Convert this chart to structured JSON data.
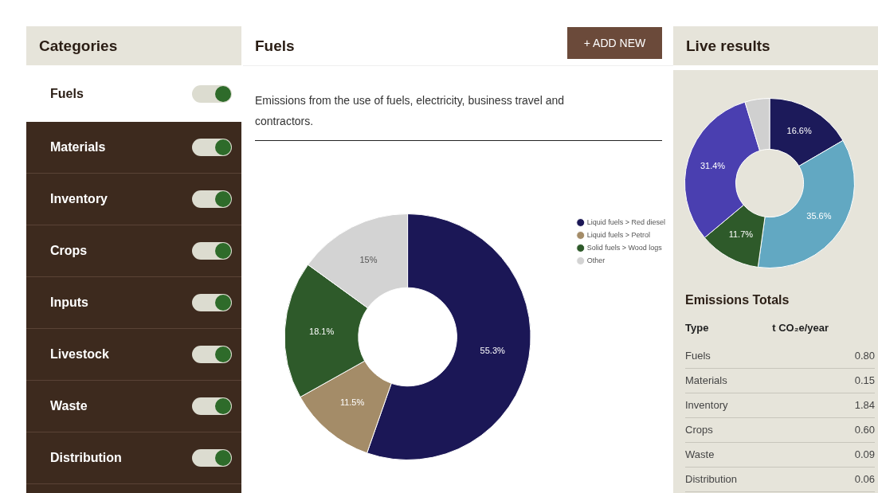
{
  "chart_data": [
    {
      "type": "donut",
      "title": "Fuels",
      "subtitle": "Emissions from the use of fuels, electricity, business travel and contractors.",
      "annotations": [
        "+ ADD NEW"
      ],
      "legend": "right",
      "categories": [
        "Liquid fuels > Red diesel",
        "Liquid fuels > Petrol",
        "Solid fuels > Wood logs",
        "Other"
      ],
      "values": [
        55.3,
        11.5,
        18.1,
        15
      ],
      "value_labels": [
        "55.3%",
        "11.5%",
        "18.1%",
        "15%"
      ],
      "colors": [
        "#1b1756",
        "#a48c68",
        "#2e5a2a",
        "#d3d3d3"
      ]
    },
    {
      "type": "donut",
      "title": "Live results",
      "categories": [
        null,
        null,
        null,
        null,
        null
      ],
      "values": [
        16.6,
        35.6,
        11.7,
        31.4,
        4.7
      ],
      "value_labels": [
        "16.6%",
        "35.6%",
        "11.7%",
        "31.4%",
        null
      ],
      "colors": [
        "#1c1a5a",
        "#62a8c2",
        "#2e5a2a",
        "#4a3fb0",
        "#d0d0d0"
      ]
    },
    {
      "type": "other",
      "title": "Categories",
      "annotations": [
        "Fuels",
        "Materials",
        "Inventory",
        "Crops",
        "Inputs",
        "Livestock",
        "Waste",
        "Distribution"
      ]
    },
    {
      "type": "other",
      "title": "Emissions Totals",
      "annotations": [
        "Type",
        "t CO₂e/year",
        "Fuels",
        "0.80",
        "Materials",
        "0.15",
        "Inventory",
        "1.84",
        "Crops",
        "0.60",
        "Waste",
        "0.09",
        "Distribution",
        "0.06"
      ]
    }
  ]
}
